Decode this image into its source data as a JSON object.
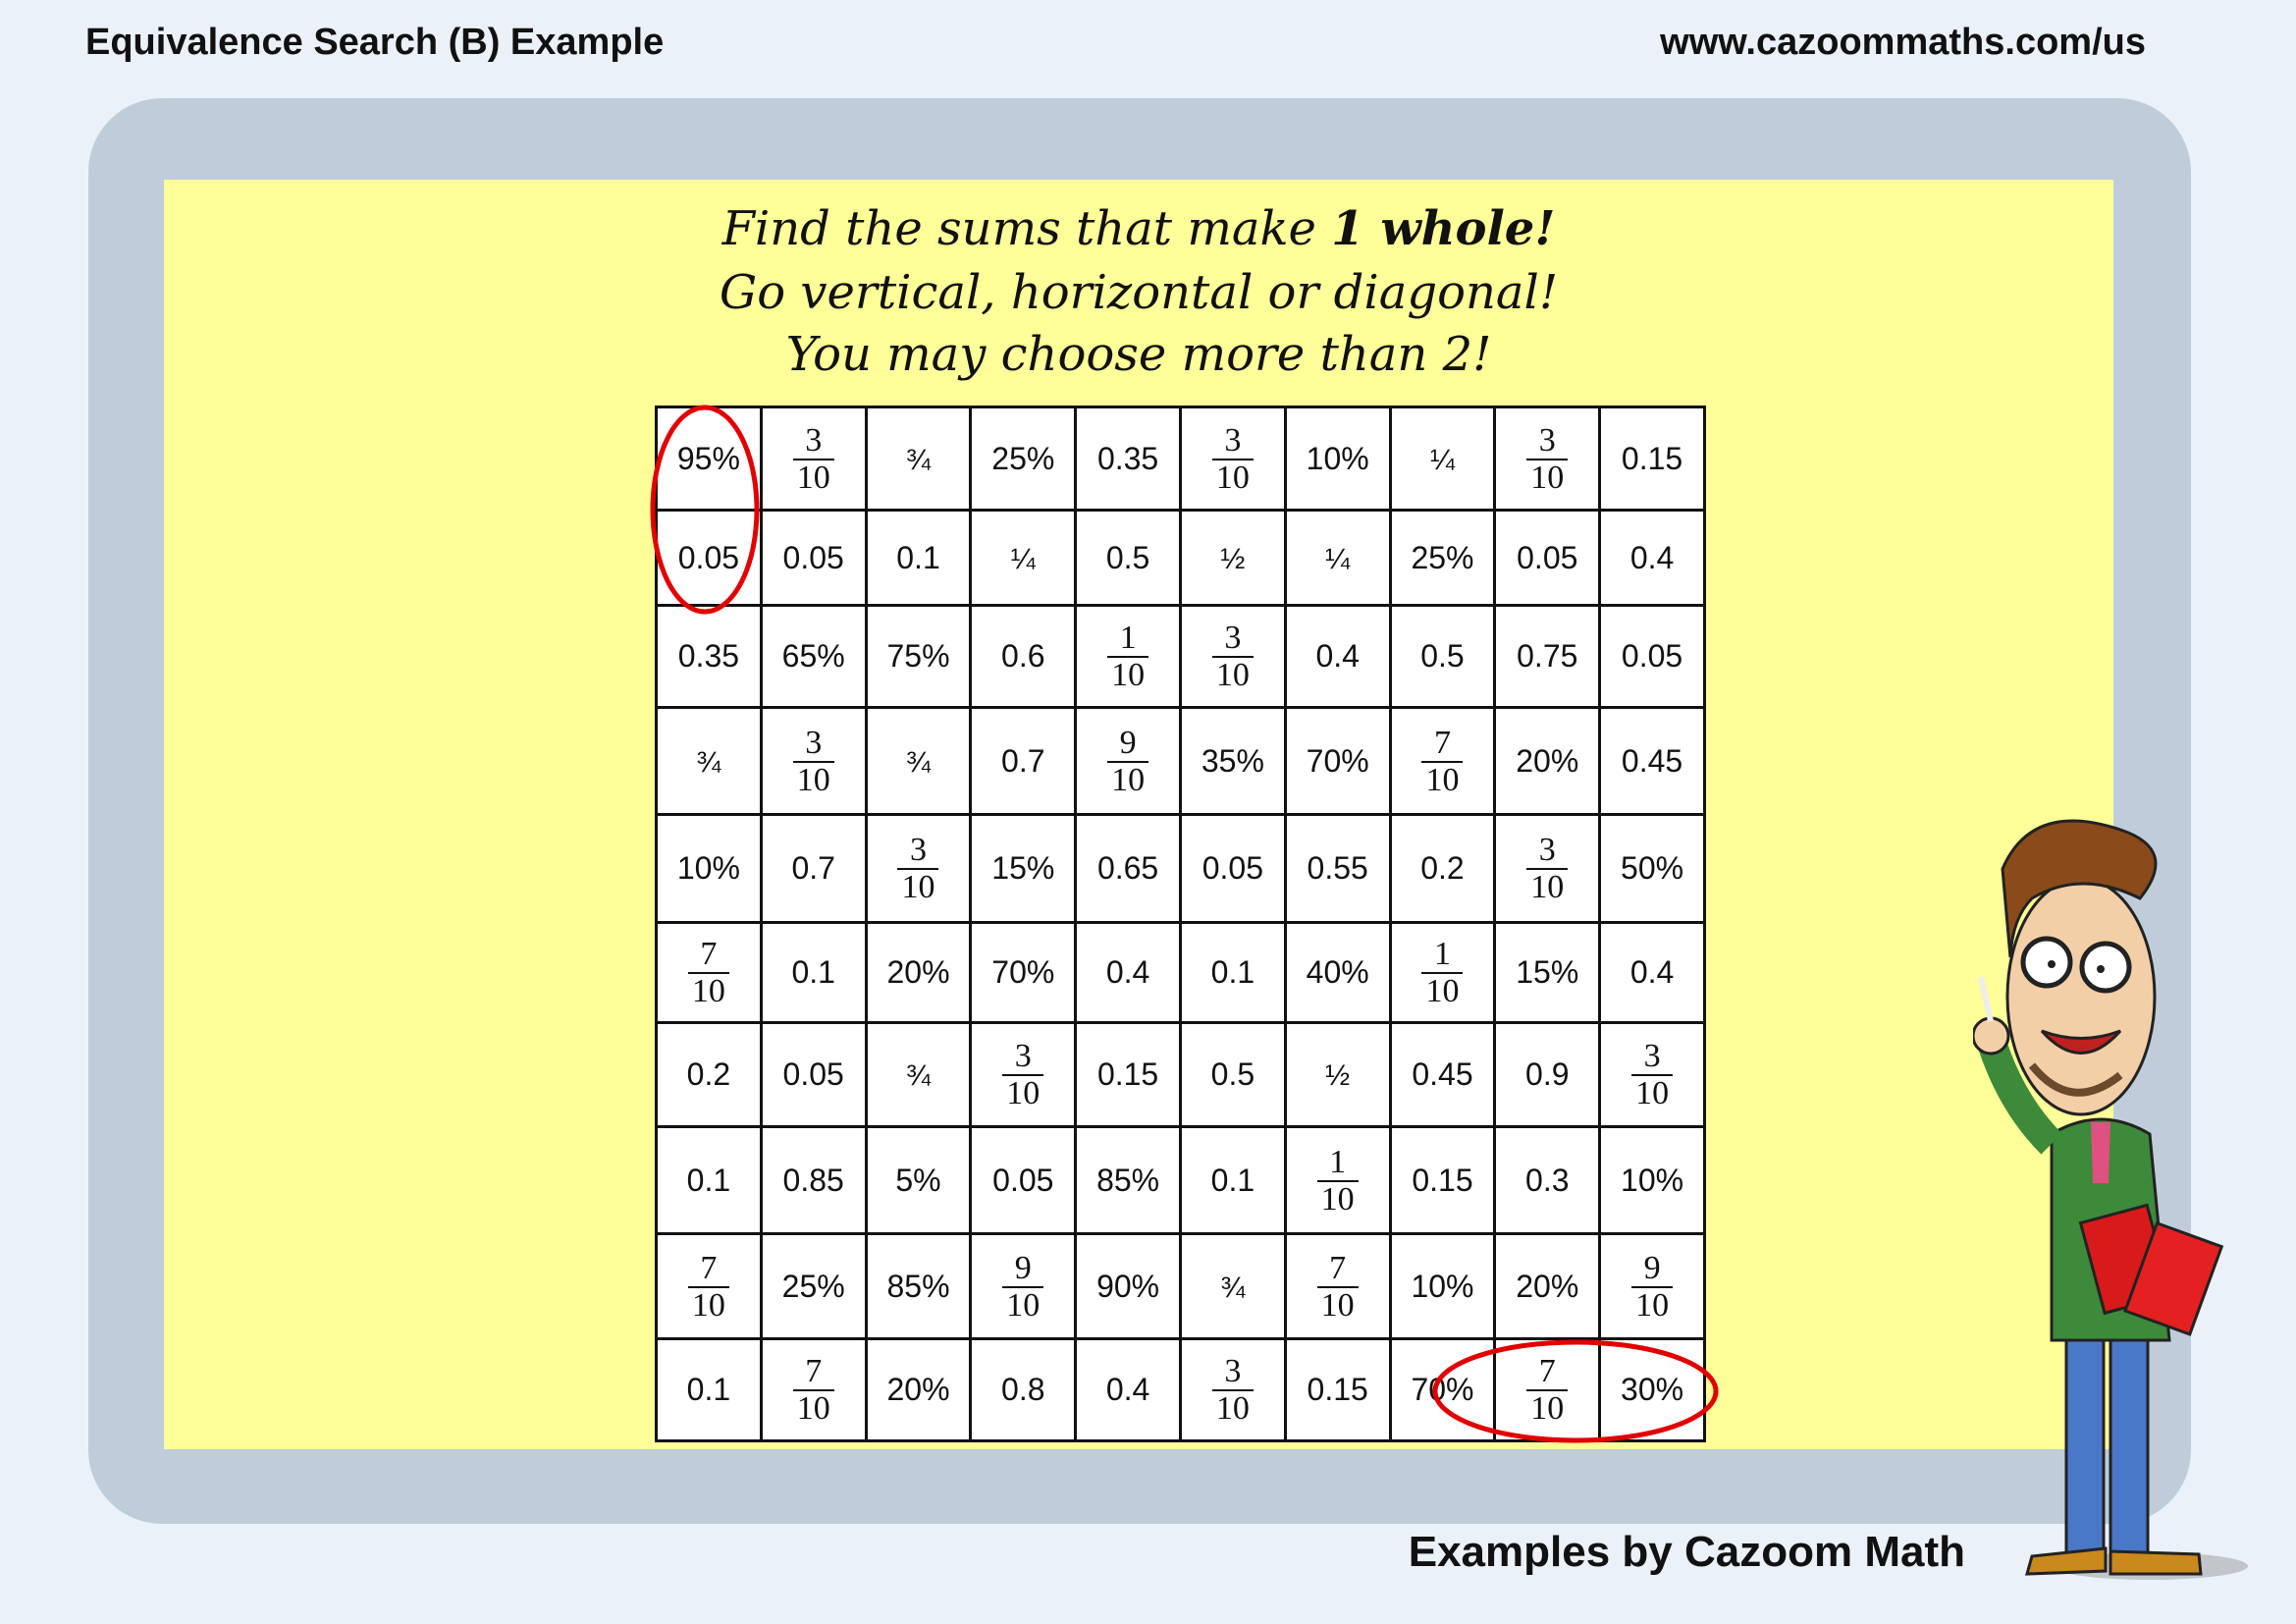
{
  "header": {
    "title": "Equivalence Search (B) Example",
    "website": "www.cazoommaths.com/us"
  },
  "instructions": {
    "line1_prefix": "Find the sums that make ",
    "line1_bold": "1 whole!",
    "line2": "Go vertical, horizontal or diagonal!",
    "line3": "You may choose more than 2!"
  },
  "grid": [
    [
      "95%",
      "3/10",
      "¾",
      "25%",
      "0.35",
      "3/10",
      "10%",
      "¼",
      "3/10",
      "0.15"
    ],
    [
      "0.05",
      "0.05",
      "0.1",
      "¼",
      "0.5",
      "½",
      "¼",
      "25%",
      "0.05",
      "0.4"
    ],
    [
      "0.35",
      "65%",
      "75%",
      "0.6",
      "1/10",
      "3/10",
      "0.4",
      "0.5",
      "0.75",
      "0.05"
    ],
    [
      "¾",
      "3/10",
      "¾",
      "0.7",
      "9/10",
      "35%",
      "70%",
      "7/10",
      "20%",
      "0.45"
    ],
    [
      "10%",
      "0.7",
      "3/10",
      "15%",
      "0.65",
      "0.05",
      "0.55",
      "0.2",
      "3/10",
      "50%"
    ],
    [
      "7/10",
      "0.1",
      "20%",
      "70%",
      "0.4",
      "0.1",
      "40%",
      "1/10",
      "15%",
      "0.4"
    ],
    [
      "0.2",
      "0.05",
      "¾",
      "3/10",
      "0.15",
      "0.5",
      "½",
      "0.45",
      "0.9",
      "3/10"
    ],
    [
      "0.1",
      "0.85",
      "5%",
      "0.05",
      "85%",
      "0.1",
      "1/10",
      "0.15",
      "0.3",
      "10%"
    ],
    [
      "7/10",
      "25%",
      "85%",
      "9/10",
      "90%",
      "¾",
      "7/10",
      "10%",
      "20%",
      "9/10"
    ],
    [
      "0.1",
      "7/10",
      "20%",
      "0.8",
      "0.4",
      "3/10",
      "0.15",
      "70%",
      "7/10",
      "30%"
    ]
  ],
  "highlighted_answers": [
    {
      "cells": [
        "95%",
        "0.05"
      ],
      "direction": "vertical"
    },
    {
      "cells": [
        "7/10",
        "30%"
      ],
      "direction": "horizontal"
    }
  ],
  "footer": {
    "credit": "Examples by Cazoom Math"
  },
  "colors": {
    "background": "#eaf1f9",
    "frame": "#bfcddb",
    "panel": "#ffff99",
    "highlight": "#e00000"
  }
}
